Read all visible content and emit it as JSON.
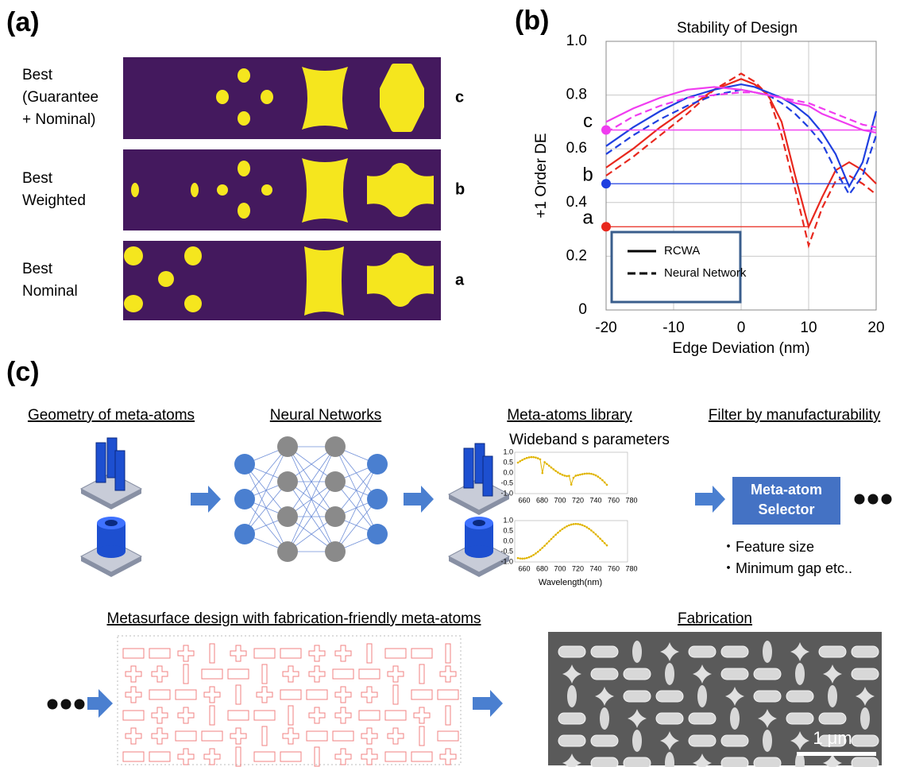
{
  "panel_a": {
    "label": "(a)",
    "rows": [
      {
        "name": [
          "Best",
          "(Guarantee",
          "+ Nominal)"
        ],
        "tag": "c"
      },
      {
        "name": [
          "Best",
          "Weighted"
        ],
        "tag": "b"
      },
      {
        "name": [
          "Best",
          "Nominal"
        ],
        "tag": "a"
      }
    ]
  },
  "panel_b_label": "(b)",
  "chart_data": {
    "type": "line",
    "title": "Stability of Design",
    "x_label": "Edge Deviation (nm)",
    "y_label": "+1 Order DE",
    "x": [
      -20,
      -16,
      -12,
      -8,
      -4,
      0,
      2,
      4,
      6,
      8,
      10,
      12,
      14,
      16,
      18,
      20
    ],
    "series": [
      {
        "design": "a",
        "dash": "solid",
        "color": "#e8281e",
        "values": [
          0.53,
          0.6,
          0.68,
          0.75,
          0.82,
          0.86,
          0.84,
          0.8,
          0.7,
          0.5,
          0.31,
          0.42,
          0.52,
          0.55,
          0.52,
          0.47
        ]
      },
      {
        "design": "a",
        "dash": "dashed",
        "color": "#e8281e",
        "values": [
          0.5,
          0.57,
          0.65,
          0.73,
          0.82,
          0.88,
          0.85,
          0.8,
          0.65,
          0.45,
          0.24,
          0.38,
          0.48,
          0.5,
          0.47,
          0.43
        ]
      },
      {
        "design": "b",
        "dash": "solid",
        "color": "#1f3fe0",
        "values": [
          0.61,
          0.68,
          0.74,
          0.79,
          0.82,
          0.84,
          0.83,
          0.81,
          0.79,
          0.76,
          0.72,
          0.66,
          0.58,
          0.46,
          0.55,
          0.74
        ]
      },
      {
        "design": "b",
        "dash": "dashed",
        "color": "#1f3fe0",
        "values": [
          0.58,
          0.65,
          0.71,
          0.76,
          0.8,
          0.82,
          0.81,
          0.8,
          0.77,
          0.73,
          0.68,
          0.62,
          0.52,
          0.43,
          0.5,
          0.65
        ]
      },
      {
        "design": "c",
        "dash": "solid",
        "color": "#f03cf0",
        "values": [
          0.7,
          0.75,
          0.79,
          0.82,
          0.83,
          0.82,
          0.81,
          0.8,
          0.79,
          0.77,
          0.76,
          0.73,
          0.71,
          0.69,
          0.67,
          0.66
        ]
      },
      {
        "design": "c",
        "dash": "dashed",
        "color": "#f03cf0",
        "values": [
          0.66,
          0.72,
          0.76,
          0.79,
          0.8,
          0.81,
          0.81,
          0.8,
          0.79,
          0.78,
          0.77,
          0.75,
          0.73,
          0.71,
          0.69,
          0.68
        ]
      }
    ],
    "ref_lines": [
      {
        "label": "c",
        "value": 0.67,
        "x_end": 20,
        "color": "#f03cf0"
      },
      {
        "label": "b",
        "value": 0.47,
        "x_end": 16,
        "color": "#1f3fe0"
      },
      {
        "label": "a",
        "value": 0.31,
        "x_end": 10,
        "color": "#e8281e"
      }
    ],
    "legend": [
      {
        "name": "RCWA",
        "dash": "solid"
      },
      {
        "name": "Neural Network",
        "dash": "dashed"
      }
    ],
    "xlim": [
      -20,
      20
    ],
    "xticks": [
      -20,
      -10,
      0,
      10,
      20
    ],
    "ylim": [
      0,
      1
    ],
    "yticks": [
      0,
      0.2,
      0.4,
      0.6,
      0.8,
      {
        "value": 1,
        "label": "1.0"
      }
    ],
    "grid": true
  },
  "panel_c": {
    "label": "(c)",
    "headers": [
      "Geometry of meta-atoms",
      "Neural Networks",
      "Meta-atoms library",
      "Filter by manufacturability"
    ],
    "library_title": "Wideband s parameters",
    "library_plot": {
      "yticks": [
        "1.0",
        "0.5",
        "0.0",
        "-0.5",
        "-1.0"
      ],
      "xticks": [
        660,
        680,
        700,
        720,
        740,
        760,
        780
      ],
      "x_label": "Wavelength(nm)"
    },
    "selector": [
      "Meta-atom",
      "Selector"
    ],
    "criteria": [
      "・Feature size",
      "・Minimum gap etc.."
    ],
    "design_title": "Metasurface design with fabrication-friendly meta-atoms",
    "fabrication_title": "Fabrication",
    "scale_bar": "1 μm"
  }
}
